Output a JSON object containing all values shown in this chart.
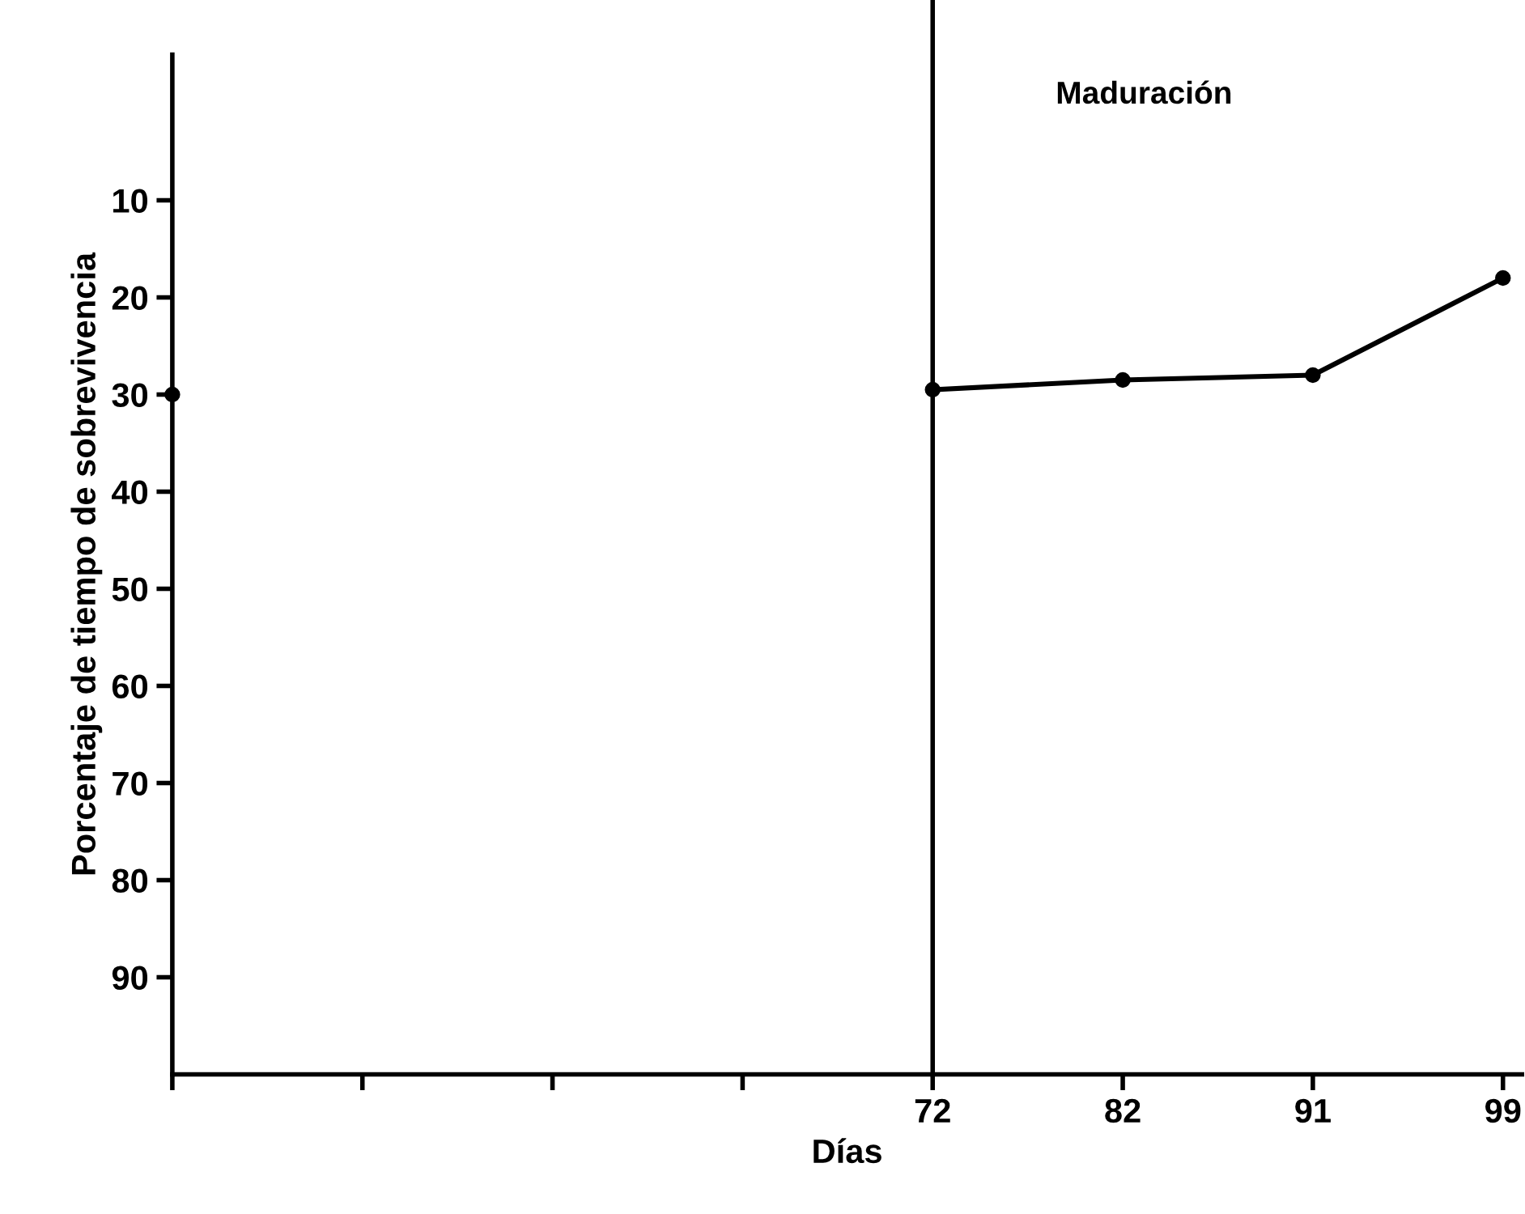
{
  "chart_data": {
    "type": "line",
    "xlabel": "Días",
    "ylabel": "Porcentaje de tiempo de sobrevivencia",
    "categories": [
      null,
      null,
      null,
      null,
      "72",
      "82",
      "91",
      "99"
    ],
    "series": [
      {
        "color": "#000000",
        "values": [
          30,
          null,
          null,
          null,
          29.5,
          28.5,
          28,
          18
        ]
      }
    ],
    "ylim": [
      100,
      -5
    ],
    "yticks": [
      10,
      20,
      30,
      40,
      50,
      60,
      70,
      80,
      90
    ],
    "ref_lines": [
      {
        "axis": "x",
        "value": "72",
        "color": "#000000",
        "line_style": "solid"
      }
    ],
    "annotations": [
      "Maduración"
    ],
    "marker": "circle",
    "line_style": "solid",
    "grid": false,
    "legend": false
  }
}
